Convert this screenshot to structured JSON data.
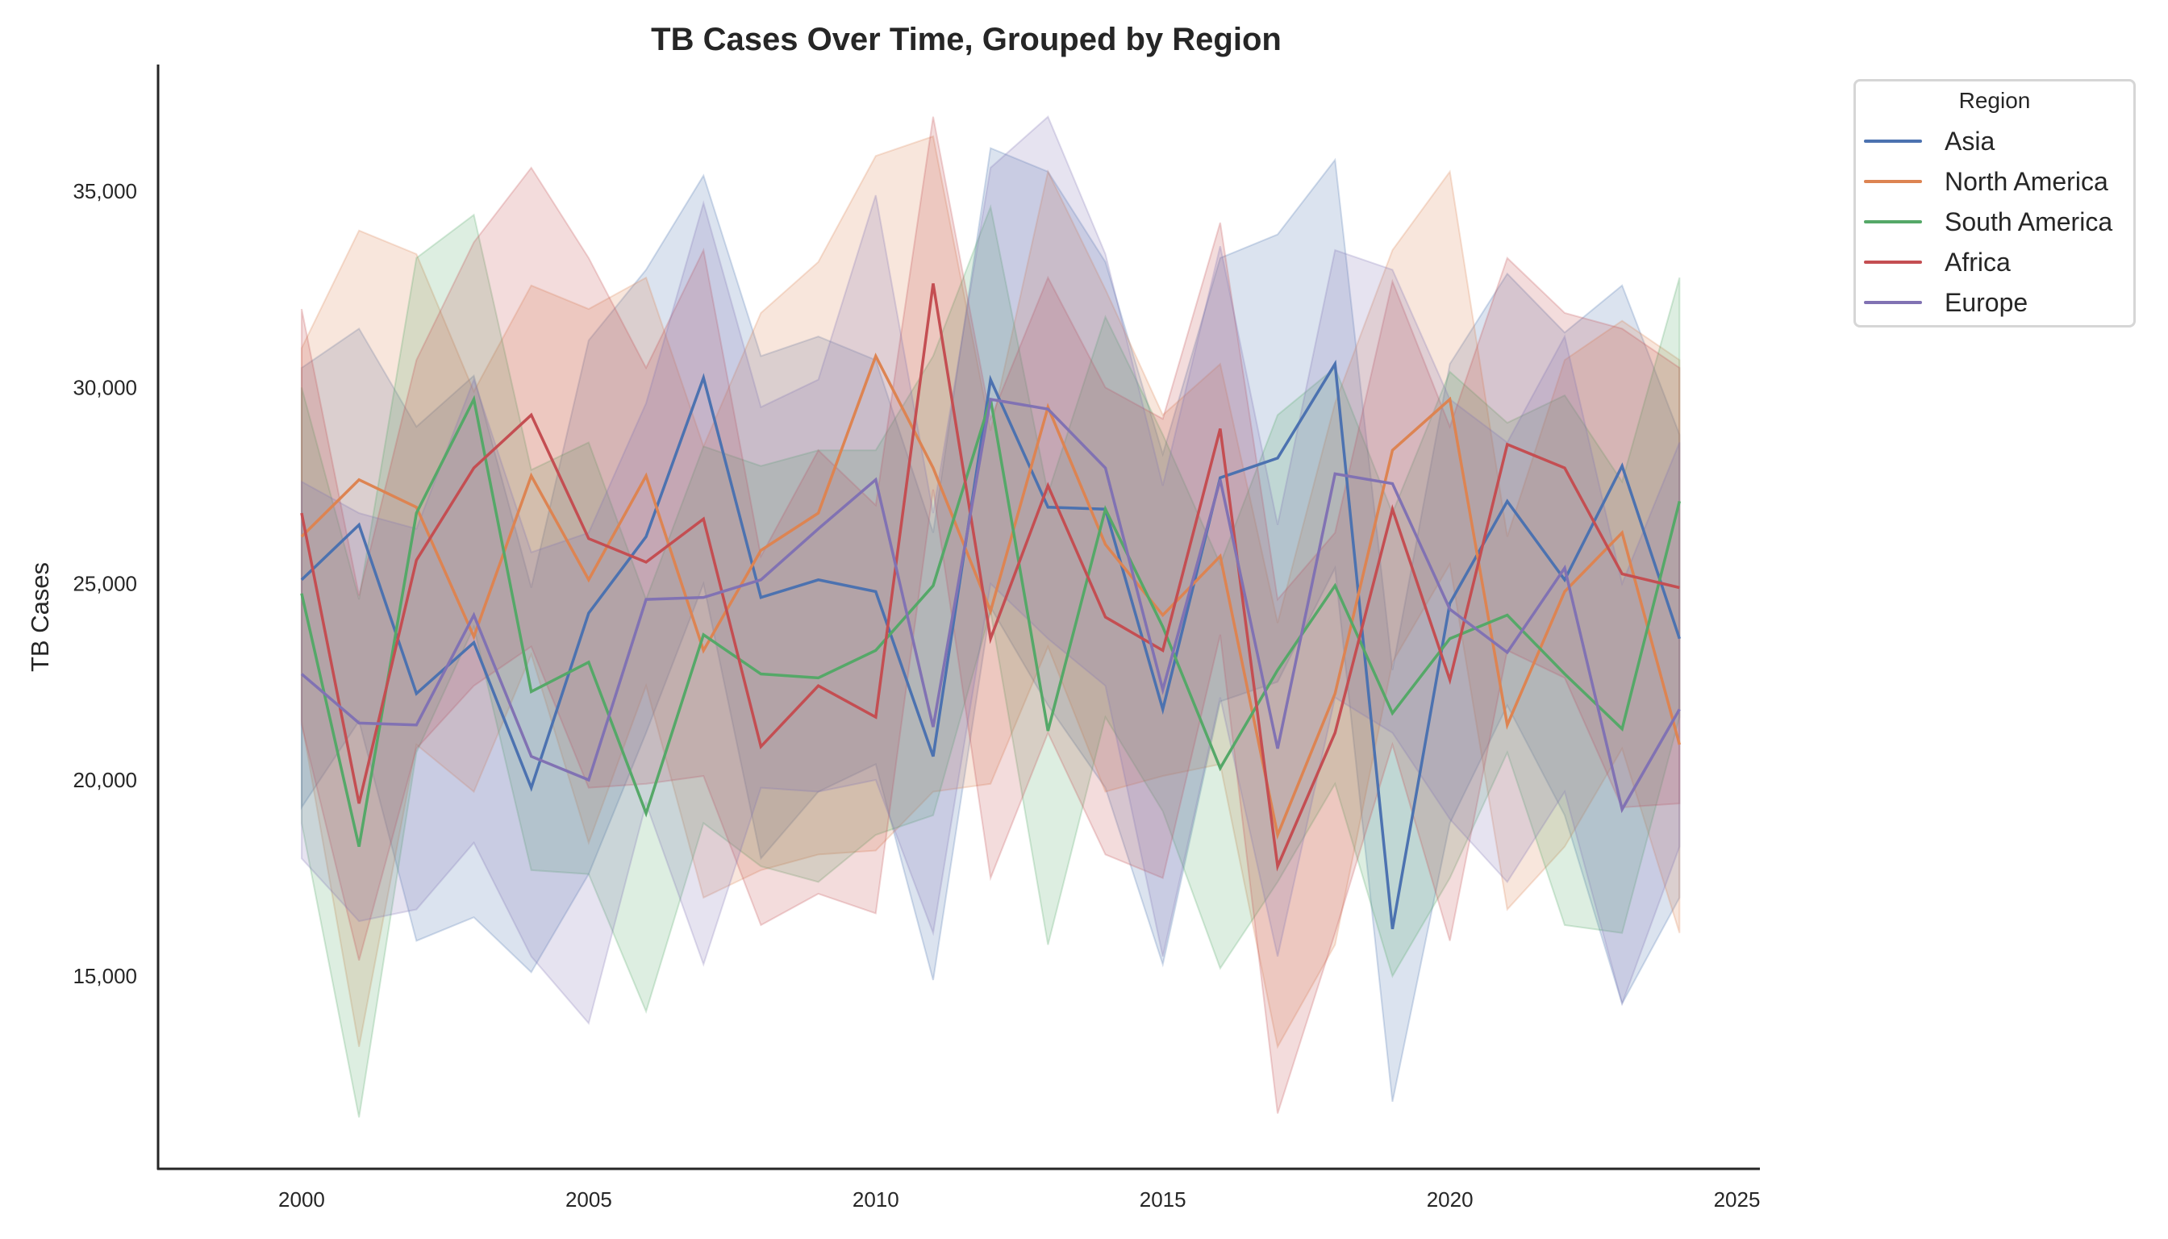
{
  "chart_data": {
    "type": "line",
    "title": "TB Cases Over Time, Grouped by Region",
    "xlabel": "",
    "ylabel": "TB Cases",
    "xlim": [
      1997.5,
      2025.4
    ],
    "ylim": [
      10090,
      38230
    ],
    "x_ticks": [
      2000,
      2005,
      2010,
      2015,
      2020,
      2025
    ],
    "x_tick_labels": [
      "2000",
      "2005",
      "2010",
      "2015",
      "2020",
      "2025"
    ],
    "y_ticks": [
      15000,
      20000,
      25000,
      30000,
      35000
    ],
    "y_tick_labels": [
      "15,000",
      "20,000",
      "25,000",
      "30,000",
      "35,000"
    ],
    "grid": false,
    "legend": {
      "title": "Region",
      "placement": "outside-top-right"
    },
    "x": [
      2000,
      2001,
      2002,
      2003,
      2004,
      2005,
      2006,
      2007,
      2008,
      2009,
      2010,
      2011,
      2012,
      2013,
      2014,
      2015,
      2016,
      2017,
      2018,
      2019,
      2020,
      2021,
      2022,
      2023,
      2024
    ],
    "series": [
      {
        "name": "Asia",
        "color": "#4c72b0",
        "values": [
          25100,
          26500,
          22200,
          23500,
          19800,
          24250,
          26200,
          30250,
          24650,
          25100,
          24800,
          20600,
          30200,
          26950,
          26900,
          21800,
          27700,
          28200,
          30600,
          16200,
          24500,
          27100,
          25100,
          28000,
          23600
        ],
        "ci_lower": [
          19300,
          21500,
          15900,
          16500,
          15100,
          17600,
          21200,
          25000,
          18000,
          19700,
          20400,
          14900,
          24400,
          21900,
          19800,
          15300,
          22000,
          22500,
          25400,
          11800,
          18900,
          21900,
          19100,
          14300,
          17000
        ],
        "ci_upper": [
          30500,
          31500,
          29000,
          30300,
          24900,
          31200,
          33000,
          35400,
          30800,
          31300,
          30700,
          26300,
          36100,
          35500,
          33200,
          28300,
          33300,
          33900,
          35800,
          22800,
          30600,
          32900,
          31400,
          32600,
          28800
        ]
      },
      {
        "name": "North America",
        "color": "#dd8452",
        "values": [
          26200,
          27650,
          26950,
          23650,
          27750,
          25100,
          27750,
          23300,
          25850,
          26800,
          30800,
          27950,
          24300,
          29500,
          26000,
          24200,
          25700,
          18600,
          22200,
          28400,
          29700,
          21400,
          24800,
          26300,
          20900
        ],
        "ci_lower": [
          21500,
          13200,
          20900,
          19700,
          23200,
          18400,
          22400,
          17000,
          17700,
          18100,
          18200,
          19700,
          19900,
          23400,
          19700,
          20100,
          20400,
          13200,
          15800,
          23000,
          25500,
          16700,
          18300,
          20800,
          16100
        ],
        "ci_upper": [
          31000,
          34000,
          33400,
          29900,
          32600,
          32000,
          32800,
          28500,
          31900,
          33200,
          35900,
          36400,
          28900,
          35500,
          32500,
          29300,
          30600,
          24000,
          29600,
          33500,
          35500,
          26200,
          30700,
          31700,
          30700
        ]
      },
      {
        "name": "South America",
        "color": "#55a868",
        "values": [
          24750,
          18300,
          26800,
          29700,
          22250,
          23000,
          19150,
          23700,
          22700,
          22600,
          23300,
          24950,
          29700,
          21250,
          26900,
          23900,
          20300,
          22800,
          24950,
          21700,
          23600,
          24200,
          22700,
          21300,
          27100
        ],
        "ci_lower": [
          18900,
          11400,
          20700,
          23900,
          17700,
          17600,
          14100,
          18900,
          17800,
          17400,
          18600,
          19100,
          24300,
          15800,
          21600,
          19200,
          15200,
          17400,
          19900,
          15000,
          17500,
          20700,
          16300,
          16100,
          21600
        ],
        "ci_upper": [
          30000,
          24600,
          33300,
          34400,
          27900,
          28600,
          24600,
          28500,
          28000,
          28400,
          28400,
          30800,
          34600,
          27300,
          31800,
          28800,
          25500,
          29300,
          30500,
          26800,
          30400,
          29100,
          29800,
          27600,
          32800
        ]
      },
      {
        "name": "Africa",
        "color": "#c44e52",
        "values": [
          26800,
          19400,
          25600,
          27950,
          29300,
          26150,
          25550,
          26650,
          20850,
          22400,
          21600,
          32650,
          23600,
          27500,
          24150,
          23300,
          28950,
          17800,
          21200,
          26900,
          22550,
          28550,
          27950,
          25250,
          24900
        ],
        "ci_lower": [
          21400,
          15400,
          20800,
          22400,
          23400,
          19800,
          19900,
          20100,
          16300,
          17100,
          16600,
          27400,
          17500,
          21200,
          18100,
          17500,
          23700,
          11500,
          16100,
          20900,
          15900,
          23300,
          22600,
          19300,
          19400
        ],
        "ci_upper": [
          32000,
          24700,
          30700,
          33700,
          35600,
          33300,
          30500,
          33500,
          25700,
          28400,
          27000,
          36900,
          29200,
          32800,
          30000,
          29200,
          34200,
          24600,
          26300,
          32700,
          29000,
          33300,
          31900,
          31500,
          30500
        ]
      },
      {
        "name": "Europe",
        "color": "#8172b3",
        "values": [
          22700,
          21450,
          21400,
          24200,
          20600,
          20000,
          24600,
          24650,
          25100,
          26400,
          27650,
          21350,
          29700,
          29450,
          27950,
          22300,
          27650,
          20800,
          27800,
          27550,
          24350,
          23250,
          25400,
          19250,
          21800
        ],
        "ci_lower": [
          18000,
          16400,
          16700,
          18400,
          15500,
          13800,
          19400,
          15300,
          19800,
          19700,
          20000,
          16100,
          25000,
          23600,
          22400,
          15500,
          22100,
          15500,
          22100,
          21200,
          19000,
          17400,
          19700,
          14300,
          18300
        ],
        "ci_upper": [
          27600,
          26800,
          26400,
          30200,
          25800,
          26300,
          29600,
          34700,
          29500,
          30200,
          34900,
          26800,
          35600,
          36900,
          33400,
          27500,
          33600,
          26500,
          33500,
          33000,
          29700,
          28600,
          31300,
          25000,
          28600
        ]
      }
    ]
  }
}
